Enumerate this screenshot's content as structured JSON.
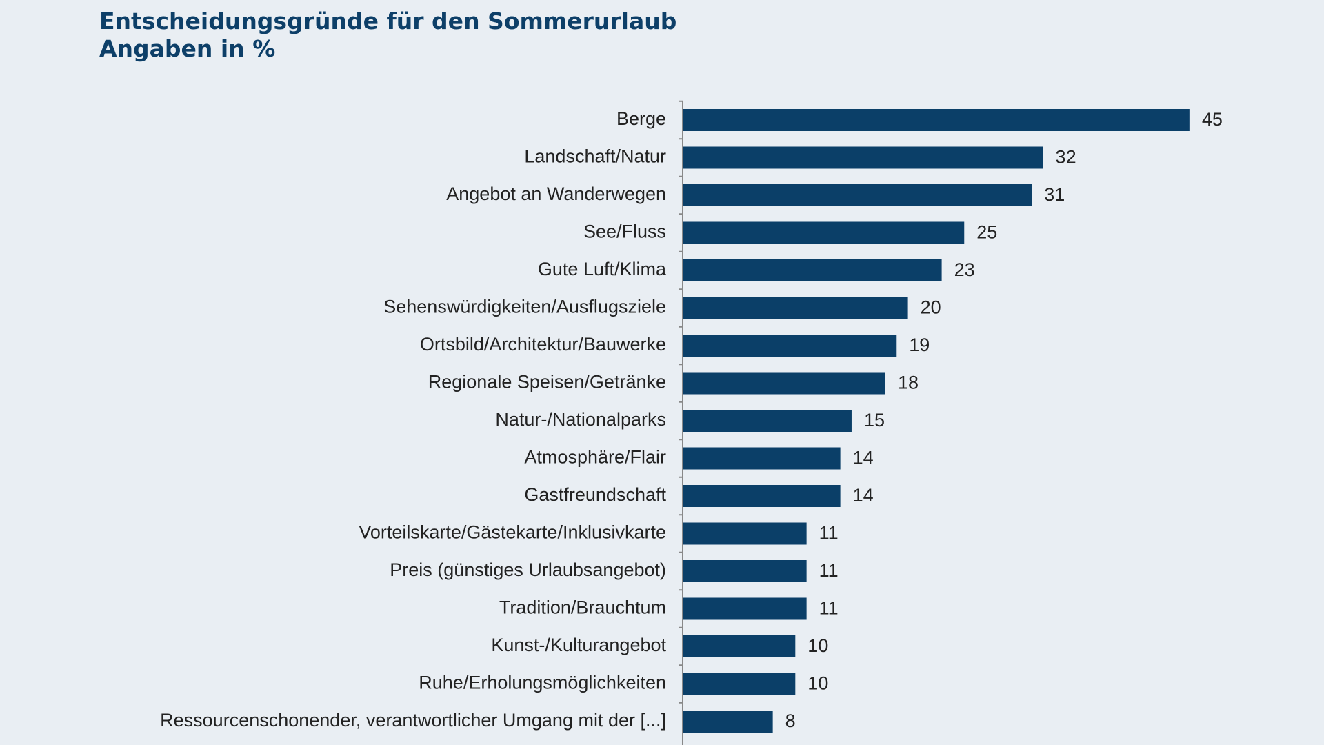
{
  "chart_data": {
    "type": "bar",
    "orientation": "horizontal",
    "title": "Entscheidungsgründe für den Sommerurlaub",
    "subtitle": "Angaben in %",
    "color": "#0b3f68",
    "categories": [
      "Berge",
      "Landschaft/Natur",
      "Angebot an Wanderwegen",
      "See/Fluss",
      "Gute Luft/Klima",
      "Sehenswürdigkeiten/Ausflugsziele",
      "Ortsbild/Architektur/Bauwerke",
      "Regionale Speisen/Getränke",
      "Natur-/Nationalparks",
      "Atmosphäre/Flair",
      "Gastfreundschaft",
      "Vorteilskarte/Gästekarte/Inklusivkarte",
      "Preis (günstiges Urlaubsangebot)",
      "Tradition/Brauchtum",
      "Kunst-/Kulturangebot",
      "Ruhe/Erholungsmöglichkeiten",
      "Ressourcenschonender, verantwortlicher Umgang mit der [...]"
    ],
    "values": [
      45,
      32,
      31,
      25,
      23,
      20,
      19,
      18,
      15,
      14,
      14,
      11,
      11,
      11,
      10,
      10,
      8
    ]
  }
}
